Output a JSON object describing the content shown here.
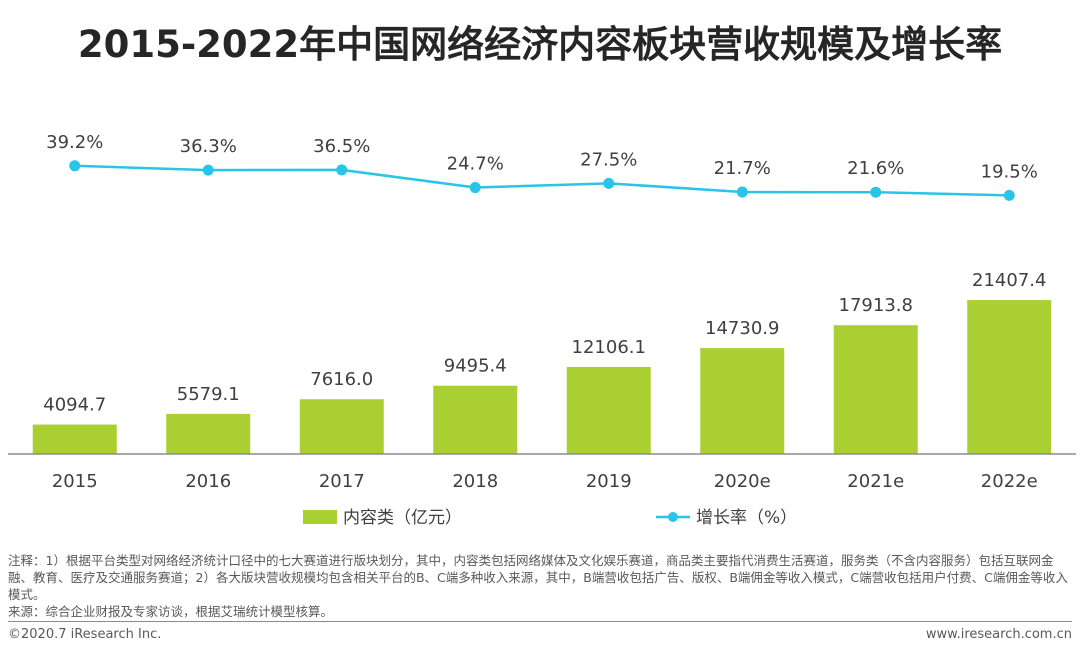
{
  "chart_data": {
    "type": "bar",
    "title": "2015-2022年中国网络经济内容板块营收规模及增长率",
    "categories": [
      "2015",
      "2016",
      "2017",
      "2018",
      "2019",
      "2020e",
      "2021e",
      "2022e"
    ],
    "series": [
      {
        "name": "内容类（亿元）",
        "type": "bar",
        "values": [
          4094.7,
          5579.1,
          7616.0,
          9495.4,
          12106.1,
          14730.9,
          17913.8,
          21407.4
        ]
      },
      {
        "name": "增长率（%）",
        "type": "line",
        "values": [
          39.2,
          36.3,
          36.5,
          24.7,
          27.5,
          21.7,
          21.6,
          19.5
        ]
      }
    ],
    "bar_labels": [
      "4094.7",
      "5579.1",
      "7616.0",
      "9495.4",
      "12106.1",
      "14730.9",
      "17913.8",
      "21407.4"
    ],
    "line_labels": [
      "39.2%",
      "36.3%",
      "36.5%",
      "24.7%",
      "27.5%",
      "21.7%",
      "21.6%",
      "19.5%"
    ],
    "bar_ylim": [
      0,
      24000
    ],
    "line_ylim": [
      0,
      40
    ],
    "legend_position": "bottom",
    "colors": {
      "bar": "#a9cf32",
      "line": "#29c5e8",
      "axis": "#8c8c8c"
    }
  },
  "note": "注释：1）根据平台类型对网络经济统计口径中的七大赛道进行版块划分，其中，内容类包括网络媒体及文化娱乐赛道，商品类主要指代消费生活赛道，服务类（不含内容服务）包括互联网金融、教育、医疗及交通服务赛道；2）各大版块营收规模均包含相关平台的B、C端多种收入来源，其中，B端营收包括广告、版权、B端佣金等收入模式，C端营收包括用户付费、C端佣金等收入模式。",
  "source": "来源：综合企业财报及专家访谈，根据艾瑞统计模型核算。",
  "footer": {
    "copyright": "©2020.7 iResearch Inc.",
    "website": "www.iresearch.com.cn"
  }
}
